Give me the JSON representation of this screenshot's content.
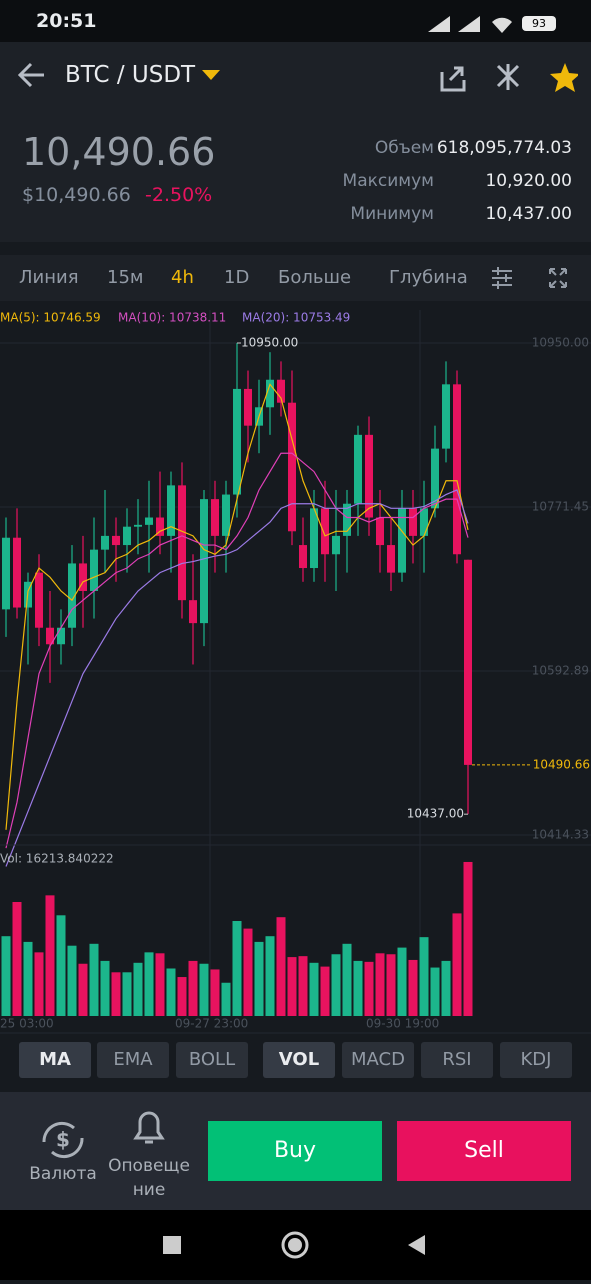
{
  "status_bar": {
    "time": "20:51",
    "battery": "93"
  },
  "header": {
    "pair": "BTC / USDT"
  },
  "summary": {
    "price": "10,490.66",
    "price_usd": "$10,490.66",
    "change": "-2.50%",
    "stats": [
      [
        "Объем",
        "618,095,774.03"
      ],
      [
        "Максимум",
        "10,920.00"
      ],
      [
        "Минимум",
        "10,437.00"
      ]
    ]
  },
  "tabs": [
    "Линия",
    "15м",
    "4h",
    "1D",
    "Больше",
    "Глубина"
  ],
  "chart": {
    "type": "candlestick",
    "ma_legend": [
      "MA(5): 10746.59",
      "MA(10): 10738.11",
      "MA(20): 10753.49"
    ],
    "ylim": [
      10414.33,
      10950
    ],
    "yticks": [
      {
        "value": 10950,
        "label": "10950.00"
      },
      {
        "value": 10771.45,
        "label": "10771.45"
      },
      {
        "value": 10592.89,
        "label": "10592.89"
      },
      {
        "value": 10414.33,
        "label": "10414.33"
      }
    ],
    "high_marker": {
      "value": 10950,
      "label": "10950.00",
      "index": 21
    },
    "low_marker": {
      "value": 10437,
      "label": "10437.00",
      "index": 42
    },
    "last_price": {
      "value": 10490.66,
      "label": "10490.66"
    },
    "up_color": "#1cb58c",
    "down_color": "#e8135f",
    "candles": [
      {
        "o": 10660,
        "h": 10760,
        "l": 10630,
        "c": 10738
      },
      {
        "o": 10738,
        "h": 10770,
        "l": 10650,
        "c": 10662
      },
      {
        "o": 10662,
        "h": 10700,
        "l": 10600,
        "c": 10690
      },
      {
        "o": 10700,
        "h": 10720,
        "l": 10620,
        "c": 10640
      },
      {
        "o": 10640,
        "h": 10680,
        "l": 10580,
        "c": 10622
      },
      {
        "o": 10622,
        "h": 10660,
        "l": 10600,
        "c": 10640
      },
      {
        "o": 10640,
        "h": 10730,
        "l": 10620,
        "c": 10710
      },
      {
        "o": 10710,
        "h": 10740,
        "l": 10640,
        "c": 10680
      },
      {
        "o": 10680,
        "h": 10760,
        "l": 10650,
        "c": 10725
      },
      {
        "o": 10725,
        "h": 10790,
        "l": 10700,
        "c": 10740
      },
      {
        "o": 10740,
        "h": 10760,
        "l": 10690,
        "c": 10730
      },
      {
        "o": 10730,
        "h": 10770,
        "l": 10700,
        "c": 10750
      },
      {
        "o": 10750,
        "h": 10780,
        "l": 10720,
        "c": 10752
      },
      {
        "o": 10752,
        "h": 10800,
        "l": 10700,
        "c": 10760
      },
      {
        "o": 10760,
        "h": 10810,
        "l": 10720,
        "c": 10740
      },
      {
        "o": 10740,
        "h": 10810,
        "l": 10700,
        "c": 10795
      },
      {
        "o": 10795,
        "h": 10820,
        "l": 10650,
        "c": 10670
      },
      {
        "o": 10670,
        "h": 10720,
        "l": 10600,
        "c": 10645
      },
      {
        "o": 10645,
        "h": 10790,
        "l": 10620,
        "c": 10780
      },
      {
        "o": 10780,
        "h": 10800,
        "l": 10700,
        "c": 10740
      },
      {
        "o": 10740,
        "h": 10800,
        "l": 10700,
        "c": 10785
      },
      {
        "o": 10785,
        "h": 10950,
        "l": 10760,
        "c": 10900
      },
      {
        "o": 10900,
        "h": 10920,
        "l": 10820,
        "c": 10860
      },
      {
        "o": 10860,
        "h": 10910,
        "l": 10830,
        "c": 10880
      },
      {
        "o": 10880,
        "h": 10940,
        "l": 10850,
        "c": 10910
      },
      {
        "o": 10910,
        "h": 10930,
        "l": 10870,
        "c": 10885
      },
      {
        "o": 10885,
        "h": 10920,
        "l": 10730,
        "c": 10745
      },
      {
        "o": 10730,
        "h": 10760,
        "l": 10690,
        "c": 10705
      },
      {
        "o": 10705,
        "h": 10790,
        "l": 10690,
        "c": 10770
      },
      {
        "o": 10770,
        "h": 10800,
        "l": 10690,
        "c": 10720
      },
      {
        "o": 10720,
        "h": 10790,
        "l": 10680,
        "c": 10740
      },
      {
        "o": 10740,
        "h": 10790,
        "l": 10700,
        "c": 10775
      },
      {
        "o": 10775,
        "h": 10860,
        "l": 10740,
        "c": 10850
      },
      {
        "o": 10850,
        "h": 10870,
        "l": 10740,
        "c": 10760
      },
      {
        "o": 10760,
        "h": 10790,
        "l": 10700,
        "c": 10730
      },
      {
        "o": 10730,
        "h": 10760,
        "l": 10680,
        "c": 10700
      },
      {
        "o": 10700,
        "h": 10790,
        "l": 10690,
        "c": 10770
      },
      {
        "o": 10770,
        "h": 10790,
        "l": 10710,
        "c": 10740
      },
      {
        "o": 10740,
        "h": 10800,
        "l": 10700,
        "c": 10770
      },
      {
        "o": 10770,
        "h": 10860,
        "l": 10760,
        "c": 10835
      },
      {
        "o": 10835,
        "h": 10930,
        "l": 10820,
        "c": 10905
      },
      {
        "o": 10905,
        "h": 10920,
        "l": 10710,
        "c": 10720
      },
      {
        "o": 10714,
        "h": 10714,
        "l": 10437,
        "c": 10490.66
      }
    ],
    "ma": [
      {
        "name": "MA(5)",
        "color": "#f0b90b",
        "values": [
          10420,
          10560,
          10680,
          10705,
          10695,
          10680,
          10670,
          10690,
          10695,
          10700,
          10715,
          10720,
          10730,
          10735,
          10745,
          10750,
          10745,
          10740,
          10725,
          10720,
          10730,
          10780,
          10830,
          10870,
          10905,
          10890,
          10845,
          10800,
          10770,
          10740,
          10745,
          10745,
          10760,
          10770,
          10775,
          10760,
          10745,
          10730,
          10740,
          10770,
          10800,
          10800,
          10746.59
        ]
      },
      {
        "name": "MA(10)",
        "color": "#e040b8",
        "values": [
          10400,
          10450,
          10520,
          10590,
          10620,
          10640,
          10660,
          10670,
          10680,
          10690,
          10700,
          10705,
          10715,
          10720,
          10730,
          10735,
          10740,
          10735,
          10730,
          10730,
          10725,
          10740,
          10760,
          10790,
          10810,
          10830,
          10830,
          10820,
          10810,
          10790,
          10770,
          10760,
          10760,
          10755,
          10760,
          10760,
          10760,
          10760,
          10770,
          10775,
          10780,
          10780,
          10738.11
        ]
      },
      {
        "name": "MA(20)",
        "color": "#9b7be6",
        "values": [
          10380,
          10410,
          10440,
          10470,
          10500,
          10530,
          10560,
          10590,
          10610,
          10630,
          10650,
          10665,
          10680,
          10690,
          10700,
          10705,
          10710,
          10712,
          10715,
          10718,
          10720,
          10725,
          10735,
          10745,
          10755,
          10770,
          10775,
          10775,
          10775,
          10770,
          10770,
          10770,
          10775,
          10775,
          10775,
          10770,
          10770,
          10770,
          10772,
          10778,
          10785,
          10790,
          10753.49
        ]
      }
    ],
    "vol_legend": "Vol: 16213.840222",
    "vol_ylim": [
      0,
      18000
    ],
    "volumes": [
      8400,
      12000,
      7800,
      6700,
      12700,
      10600,
      7400,
      5500,
      7600,
      5800,
      4600,
      4600,
      5600,
      6700,
      6600,
      5000,
      4100,
      5800,
      5500,
      4900,
      3500,
      10000,
      9200,
      7800,
      8400,
      10400,
      6200,
      6300,
      5600,
      5200,
      6500,
      7600,
      5800,
      5700,
      6600,
      6500,
      7200,
      5900,
      8300,
      5100,
      5800,
      10800,
      16213.840222
    ],
    "x_labels": [
      "25 03:00",
      "09-27 23:00",
      "09-30 19:00"
    ]
  },
  "indicators": [
    "MA",
    "EMA",
    "BOLL",
    "VOL",
    "MACD",
    "RSI",
    "KDJ"
  ],
  "bottom": {
    "currency": "Валюта",
    "alerts": "Оповещение",
    "buy": "Buy",
    "sell": "Sell"
  }
}
